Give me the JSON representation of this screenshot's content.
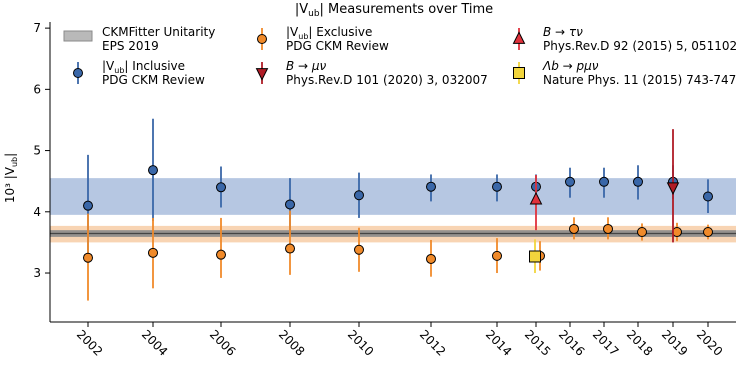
{
  "chart_data": {
    "type": "scatter",
    "title": "|V",
    "title_sub": "ub",
    "title_end": "| Measurements over Time",
    "ylabel": "10³ |V",
    "ylabel_sub": "ub",
    "ylabel_end": "|",
    "xlabel": "",
    "ylim": [
      2.2,
      7.1
    ],
    "yticks": [
      3,
      4,
      5,
      6,
      7
    ],
    "xticks": [
      "2002",
      "2004",
      "2006",
      "2008",
      "2010",
      "2012",
      "2014",
      "2015",
      "2016",
      "2017",
      "2018",
      "2019",
      "2020"
    ],
    "grid": false,
    "legend_placement": "top",
    "bands": [
      {
        "name": "Inclusive average band",
        "ymin": 3.95,
        "ymax": 4.55,
        "color": "#9db4d8"
      },
      {
        "name": "Exclusive average band",
        "ymin": 3.5,
        "ymax": 3.77,
        "color": "#f6c59a"
      },
      {
        "name": "CKMFitter Unitarity EPS 2019",
        "ymin": 3.59,
        "ymax": 3.7,
        "color": "#8a8a8a"
      }
    ],
    "series": [
      {
        "key": "inclusive",
        "name": "|V",
        "name_sub": "ub",
        "name_end": "| Inclusive",
        "source": "PDG CKM Review",
        "color": "#3a67a8",
        "marker": "circle",
        "points": [
          {
            "x": "2002",
            "y": 4.1,
            "lo": 3.27,
            "hi": 4.93
          },
          {
            "x": "2004",
            "y": 4.68,
            "lo": 3.85,
            "hi": 5.52
          },
          {
            "x": "2006",
            "y": 4.4,
            "lo": 4.07,
            "hi": 4.74
          },
          {
            "x": "2008",
            "y": 4.12,
            "lo": 3.69,
            "hi": 4.55
          },
          {
            "x": "2010",
            "y": 4.27,
            "lo": 3.9,
            "hi": 4.64
          },
          {
            "x": "2012",
            "y": 4.41,
            "lo": 4.17,
            "hi": 4.61
          },
          {
            "x": "2014",
            "y": 4.41,
            "lo": 4.17,
            "hi": 4.61
          },
          {
            "x": "2015",
            "y": 4.41,
            "lo": 4.19,
            "hi": 4.61
          },
          {
            "x": "2016",
            "y": 4.49,
            "lo": 4.23,
            "hi": 4.72
          },
          {
            "x": "2017",
            "y": 4.49,
            "lo": 4.23,
            "hi": 4.72
          },
          {
            "x": "2018",
            "y": 4.49,
            "lo": 4.2,
            "hi": 4.76
          },
          {
            "x": "2019",
            "y": 4.49,
            "lo": 4.21,
            "hi": 4.76
          },
          {
            "x": "2020",
            "y": 4.25,
            "lo": 3.98,
            "hi": 4.53
          }
        ]
      },
      {
        "key": "exclusive",
        "name": "|V",
        "name_sub": "ub",
        "name_end": "| Exclusive",
        "source": "PDG CKM Review",
        "color": "#f08a2a",
        "marker": "circle",
        "points": [
          {
            "x": "2002",
            "y": 3.25,
            "lo": 2.55,
            "hi": 3.97
          },
          {
            "x": "2004",
            "y": 3.33,
            "lo": 2.75,
            "hi": 3.9
          },
          {
            "x": "2006",
            "y": 3.3,
            "lo": 2.92,
            "hi": 3.9
          },
          {
            "x": "2008",
            "y": 3.4,
            "lo": 2.97,
            "hi": 4.02
          },
          {
            "x": "2010",
            "y": 3.38,
            "lo": 3.02,
            "hi": 3.74
          },
          {
            "x": "2012",
            "y": 3.23,
            "lo": 2.94,
            "hi": 3.54
          },
          {
            "x": "2014",
            "y": 3.28,
            "lo": 3.0,
            "hi": 3.57
          },
          {
            "x": "2015",
            "y": 3.28,
            "lo": 3.04,
            "hi": 3.52
          },
          {
            "x": "2016",
            "y": 3.72,
            "lo": 3.55,
            "hi": 3.91
          },
          {
            "x": "2017",
            "y": 3.72,
            "lo": 3.55,
            "hi": 3.91
          },
          {
            "x": "2018",
            "y": 3.67,
            "lo": 3.53,
            "hi": 3.81
          },
          {
            "x": "2019",
            "y": 3.67,
            "lo": 3.52,
            "hi": 3.82
          },
          {
            "x": "2020",
            "y": 3.67,
            "lo": 3.55,
            "hi": 3.79
          }
        ]
      },
      {
        "key": "munu",
        "name": "B → μν",
        "source": "Phys.Rev.D 101 (2020) 3, 032007",
        "color": "#b01c26",
        "marker": "triangle-down",
        "points": [
          {
            "x": "2019",
            "y": 4.4,
            "lo": 3.5,
            "hi": 5.35
          }
        ]
      },
      {
        "key": "taunu",
        "name": "B → τν",
        "source": "Phys.Rev.D 92 (2015) 5, 051102",
        "color": "#e0323c",
        "marker": "triangle-up",
        "points": [
          {
            "x": "2015",
            "y": 4.2,
            "lo": 3.7,
            "hi": 4.6
          }
        ]
      },
      {
        "key": "lambda",
        "name": "Λb → pμν",
        "source": "Nature Phys. 11 (2015) 743-747",
        "color": "#f2d53c",
        "marker": "square",
        "points": [
          {
            "x": "2015",
            "y": 3.27,
            "lo": 3.0,
            "hi": 3.55
          }
        ]
      }
    ],
    "legend": [
      {
        "key": "band",
        "label": "CKMFitter Unitarity",
        "label2": "EPS 2019"
      },
      {
        "key": "inclusive"
      },
      {
        "key": "exclusive"
      },
      {
        "key": "munu"
      },
      {
        "key": "taunu"
      },
      {
        "key": "lambda"
      }
    ]
  }
}
